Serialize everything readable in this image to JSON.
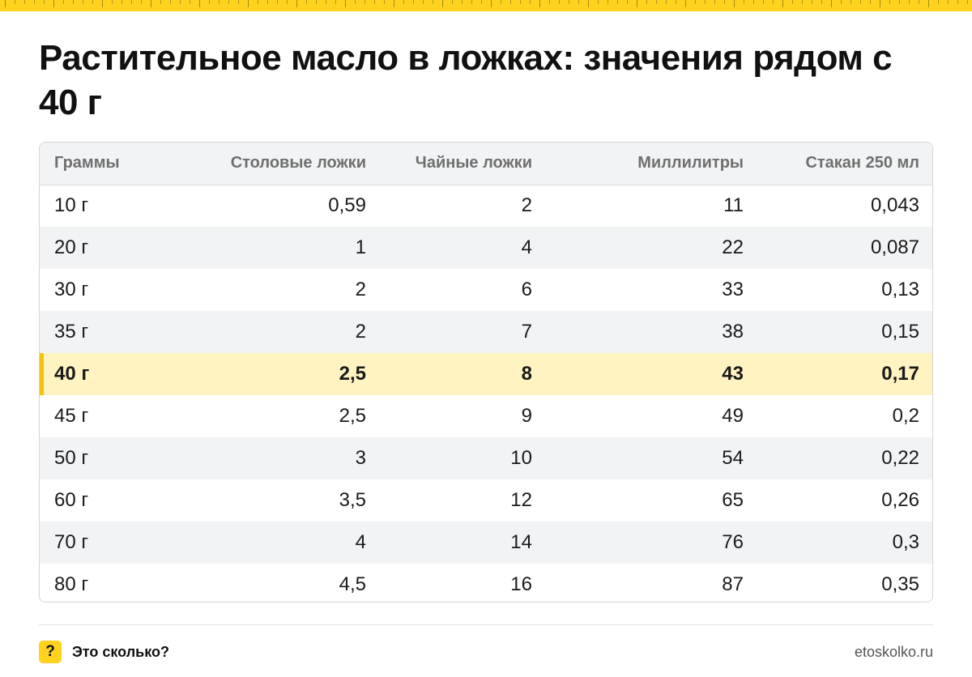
{
  "title": "Растительное масло в ложках: значения рядом с 40 г",
  "table": {
    "headers": [
      "Граммы",
      "Столовые ложки",
      "Чайные ложки",
      "Миллилитры",
      "Стакан 250 мл"
    ],
    "highlighted_row": 4,
    "rows": [
      [
        "10 г",
        "0,59",
        "2",
        "11",
        "0,043"
      ],
      [
        "20 г",
        "1",
        "4",
        "22",
        "0,087"
      ],
      [
        "30 г",
        "2",
        "6",
        "33",
        "0,13"
      ],
      [
        "35 г",
        "2",
        "7",
        "38",
        "0,15"
      ],
      [
        "40 г",
        "2,5",
        "8",
        "43",
        "0,17"
      ],
      [
        "45 г",
        "2,5",
        "9",
        "49",
        "0,2"
      ],
      [
        "50 г",
        "3",
        "10",
        "54",
        "0,22"
      ],
      [
        "60 г",
        "3,5",
        "12",
        "65",
        "0,26"
      ],
      [
        "70 г",
        "4",
        "14",
        "76",
        "0,3"
      ],
      [
        "80 г",
        "4,5",
        "16",
        "87",
        "0,35"
      ]
    ]
  },
  "footer": {
    "badge_icon": "question-mark-icon",
    "badge_glyph": "?",
    "brand": "Это сколько?",
    "url": "etoskolko.ru"
  },
  "colors": {
    "accent_yellow": "#ffd21f",
    "highlight_row": "#fff3c2",
    "highlight_marker": "#f4c20d"
  }
}
